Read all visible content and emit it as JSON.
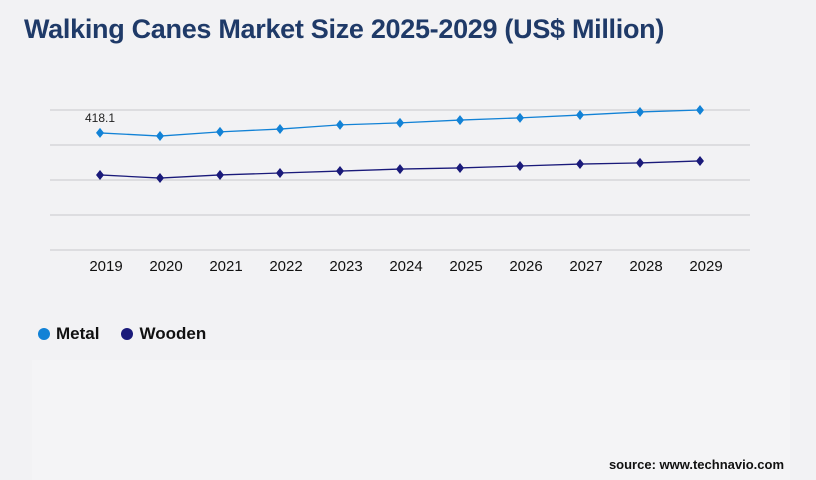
{
  "chart_data": {
    "type": "line",
    "title": "Walking Canes Market Size 2025-2029 (US$ Million)",
    "x": [
      "2019",
      "2020",
      "2021",
      "2022",
      "2023",
      "2024",
      "2025",
      "2026",
      "2027",
      "2028",
      "2029"
    ],
    "series": [
      {
        "name": "Metal",
        "color": "#1282d6",
        "values": [
          418.1,
          407,
          422,
          432,
          447,
          454,
          464,
          472,
          482,
          493,
          500
        ]
      },
      {
        "name": "Wooden",
        "color": "#1a1a7a",
        "values": [
          268,
          257,
          268,
          275,
          282,
          289,
          293,
          300,
          307,
          311,
          318
        ]
      }
    ],
    "annotations": [
      {
        "series": "Metal",
        "x": "2019",
        "label": "418.1"
      }
    ],
    "ylim": [
      0,
      500
    ],
    "yticks_gridlines": [
      0,
      125,
      250,
      375,
      500
    ],
    "grid": true,
    "legend_position": "bottom-left"
  },
  "source": "source: www.technavio.com"
}
